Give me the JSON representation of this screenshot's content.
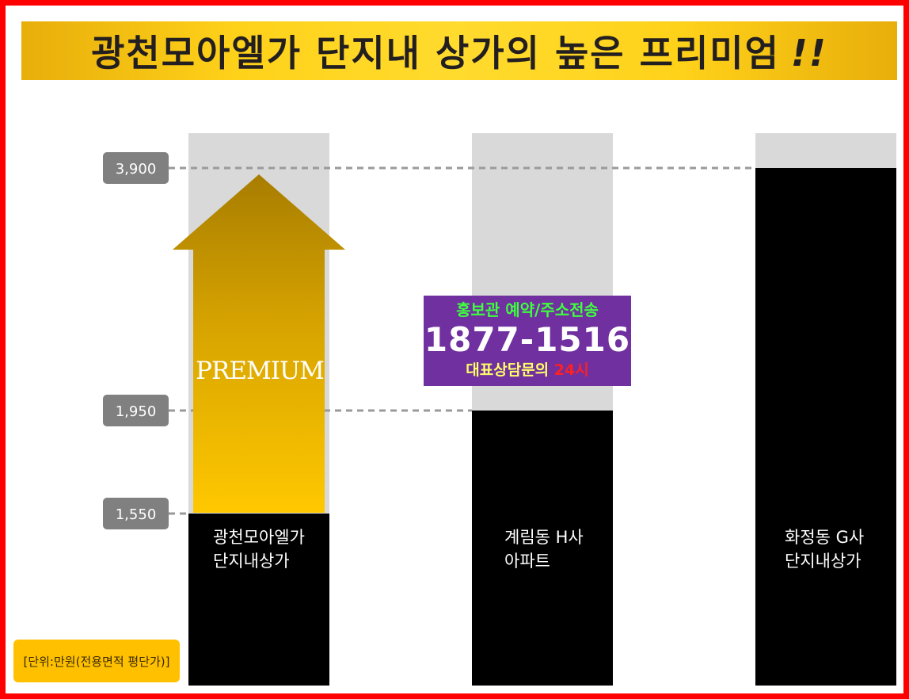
{
  "title": {
    "text": "광천모아엘가 단지내 상가의 높은 프리미엄",
    "mark": "!!"
  },
  "premium_label": "PREMIUM",
  "promo": {
    "line1": "홍보관 예약/주소전송",
    "phone": "1877-1516",
    "desc": "대표상담문의",
    "hours": "24시"
  },
  "unit_note": "[단위:만원(전용면적  평단가)]",
  "colors": {
    "frame": "#ff0000",
    "banner": "#ffd21a",
    "bar_fill": "#000000",
    "bar_track": "#d9d9d9",
    "arrow_top": "#a87d00",
    "arrow_bottom": "#ffc800",
    "tick_badge": "#808080",
    "promo_bg": "#7030a0"
  },
  "chart_data": {
    "type": "bar",
    "title": "광천모아엘가 단지내 상가의 높은 프리미엄 !!",
    "categories": [
      [
        "광천모아엘가",
        "단지내상가"
      ],
      [
        "계림동 H사",
        "아파트"
      ],
      [
        "화정동 G사",
        "단지내상가"
      ]
    ],
    "values": [
      1550,
      1950,
      3900
    ],
    "premium_target": 3900,
    "tick_labels": [
      "3,900",
      "1,950",
      "1,550"
    ],
    "tick_values": [
      3900,
      1950,
      1550
    ],
    "ylabel": "[단위:만원(전용면적  평단가)]",
    "grid": false,
    "legend": "none"
  }
}
